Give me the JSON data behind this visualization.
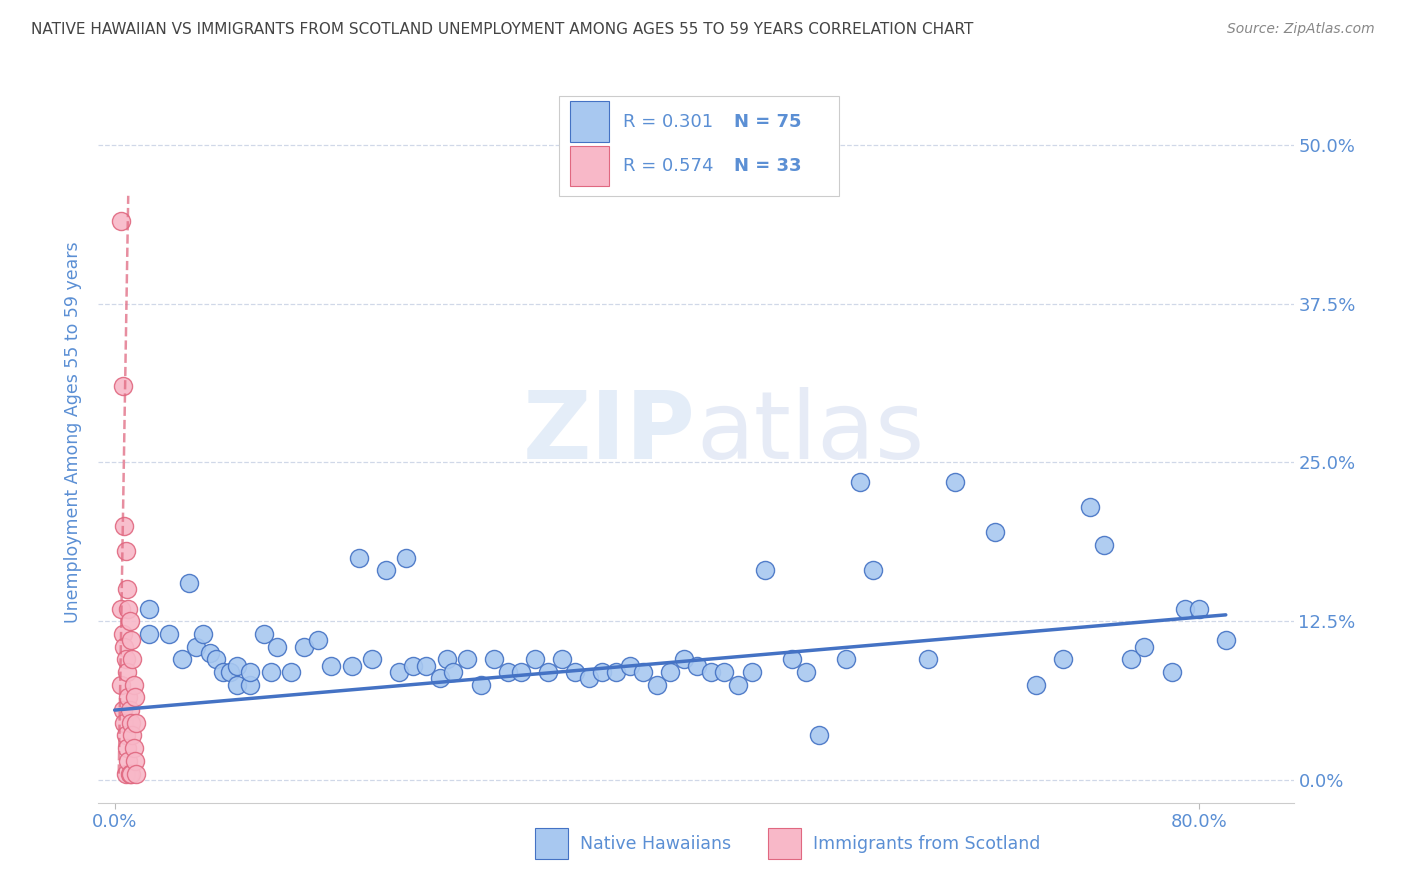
{
  "title": "NATIVE HAWAIIAN VS IMMIGRANTS FROM SCOTLAND UNEMPLOYMENT AMONG AGES 55 TO 59 YEARS CORRELATION CHART",
  "source": "Source: ZipAtlas.com",
  "ylabel": "Unemployment Among Ages 55 to 59 years",
  "blue_color": "#a8c8f0",
  "blue_edge_color": "#4472c4",
  "blue_line_color": "#4472c4",
  "pink_color": "#f8b8c8",
  "pink_edge_color": "#e06880",
  "pink_line_color": "#e06880",
  "tick_color": "#5b8fd4",
  "grid_color": "#d0d8e8",
  "axis_label_color": "#5b8fd4",
  "title_color": "#444444",
  "source_color": "#888888",
  "watermark": "ZIPatlas",
  "watermark_color": "#d0e0f4",
  "legend_r_blue": "R = 0.301",
  "legend_n_blue": "N = 75",
  "legend_r_pink": "R = 0.574",
  "legend_n_pink": "N = 33",
  "legend_label_blue": "Native Hawaiians",
  "legend_label_pink": "Immigrants from Scotland",
  "xlim": [
    0.0,
    0.85
  ],
  "ylim": [
    0.0,
    0.54
  ],
  "xticks": [
    0.0,
    0.8
  ],
  "yticks": [
    0.0,
    0.125,
    0.25,
    0.375,
    0.5
  ],
  "xtick_labels": [
    "0.0%",
    "80.0%"
  ],
  "ytick_labels": [
    "0.0%",
    "12.5%",
    "25.0%",
    "37.5%",
    "50.0%"
  ],
  "blue_trend_x": [
    0.0,
    0.82
  ],
  "blue_trend_y": [
    0.055,
    0.13
  ],
  "pink_trend_x": [
    0.003,
    0.01
  ],
  "pink_trend_y": [
    0.005,
    0.46
  ],
  "blue_x": [
    0.025,
    0.055,
    0.025,
    0.04,
    0.05,
    0.06,
    0.065,
    0.07,
    0.075,
    0.08,
    0.085,
    0.09,
    0.09,
    0.1,
    0.1,
    0.11,
    0.115,
    0.12,
    0.13,
    0.14,
    0.15,
    0.16,
    0.175,
    0.18,
    0.19,
    0.2,
    0.21,
    0.215,
    0.22,
    0.23,
    0.24,
    0.245,
    0.25,
    0.26,
    0.27,
    0.28,
    0.29,
    0.3,
    0.31,
    0.32,
    0.33,
    0.34,
    0.35,
    0.36,
    0.37,
    0.38,
    0.39,
    0.4,
    0.41,
    0.42,
    0.43,
    0.44,
    0.45,
    0.46,
    0.47,
    0.48,
    0.5,
    0.51,
    0.52,
    0.54,
    0.55,
    0.56,
    0.6,
    0.62,
    0.65,
    0.68,
    0.7,
    0.72,
    0.73,
    0.75,
    0.76,
    0.78,
    0.79,
    0.8,
    0.82
  ],
  "blue_y": [
    0.135,
    0.155,
    0.115,
    0.115,
    0.095,
    0.105,
    0.115,
    0.1,
    0.095,
    0.085,
    0.085,
    0.09,
    0.075,
    0.075,
    0.085,
    0.115,
    0.085,
    0.105,
    0.085,
    0.105,
    0.11,
    0.09,
    0.09,
    0.175,
    0.095,
    0.165,
    0.085,
    0.175,
    0.09,
    0.09,
    0.08,
    0.095,
    0.085,
    0.095,
    0.075,
    0.095,
    0.085,
    0.085,
    0.095,
    0.085,
    0.095,
    0.085,
    0.08,
    0.085,
    0.085,
    0.09,
    0.085,
    0.075,
    0.085,
    0.095,
    0.09,
    0.085,
    0.085,
    0.075,
    0.085,
    0.165,
    0.095,
    0.085,
    0.035,
    0.095,
    0.235,
    0.165,
    0.095,
    0.235,
    0.195,
    0.075,
    0.095,
    0.215,
    0.185,
    0.095,
    0.105,
    0.085,
    0.135,
    0.135,
    0.11
  ],
  "pink_x": [
    0.005,
    0.005,
    0.005,
    0.006,
    0.006,
    0.006,
    0.007,
    0.007,
    0.007,
    0.008,
    0.008,
    0.008,
    0.008,
    0.009,
    0.009,
    0.009,
    0.01,
    0.01,
    0.01,
    0.011,
    0.011,
    0.011,
    0.012,
    0.012,
    0.012,
    0.013,
    0.013,
    0.014,
    0.014,
    0.015,
    0.015,
    0.016,
    0.016
  ],
  "pink_y": [
    0.44,
    0.135,
    0.075,
    0.31,
    0.115,
    0.055,
    0.2,
    0.105,
    0.045,
    0.18,
    0.095,
    0.035,
    0.005,
    0.15,
    0.085,
    0.025,
    0.135,
    0.065,
    0.015,
    0.125,
    0.055,
    0.005,
    0.11,
    0.045,
    0.005,
    0.095,
    0.035,
    0.075,
    0.025,
    0.065,
    0.015,
    0.045,
    0.005
  ]
}
